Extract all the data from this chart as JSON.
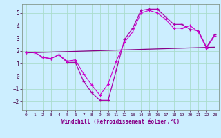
{
  "xlabel": "Windchill (Refroidissement éolien,°C)",
  "bg_color": "#cceeff",
  "grid_color": "#aaddcc",
  "line_color1": "#aa00aa",
  "line_color2": "#cc00cc",
  "line_color3": "#880088",
  "xlim": [
    -0.5,
    23.5
  ],
  "ylim": [
    -2.7,
    5.7
  ],
  "xticks": [
    0,
    1,
    2,
    3,
    4,
    5,
    6,
    7,
    8,
    9,
    10,
    11,
    12,
    13,
    14,
    15,
    16,
    17,
    18,
    19,
    20,
    21,
    22,
    23
  ],
  "yticks": [
    -2,
    -1,
    0,
    1,
    2,
    3,
    4,
    5
  ],
  "series1_x": [
    0,
    1,
    2,
    3,
    4,
    5,
    6,
    7,
    8,
    9,
    10,
    11,
    12,
    13,
    14,
    15,
    16,
    17,
    18,
    19,
    20,
    21,
    22,
    23
  ],
  "series1_y": [
    1.9,
    1.9,
    1.5,
    1.4,
    1.7,
    1.1,
    1.1,
    -0.4,
    -1.3,
    -1.9,
    -1.9,
    0.5,
    2.9,
    3.8,
    5.2,
    5.3,
    5.3,
    4.7,
    4.1,
    4.1,
    3.7,
    3.6,
    2.3,
    3.3
  ],
  "series2_x": [
    0,
    1,
    2,
    3,
    4,
    5,
    6,
    7,
    8,
    9,
    10,
    11,
    12,
    13,
    14,
    15,
    16,
    17,
    18,
    19,
    20,
    21,
    22,
    23
  ],
  "series2_y": [
    1.9,
    1.9,
    1.5,
    1.4,
    1.7,
    1.2,
    1.3,
    0.2,
    -0.7,
    -1.5,
    -0.6,
    1.2,
    2.7,
    3.5,
    5.0,
    5.2,
    5.0,
    4.5,
    3.8,
    3.8,
    4.0,
    3.5,
    2.2,
    3.2
  ],
  "series3_x": [
    0,
    23
  ],
  "series3_y": [
    1.85,
    2.3
  ]
}
